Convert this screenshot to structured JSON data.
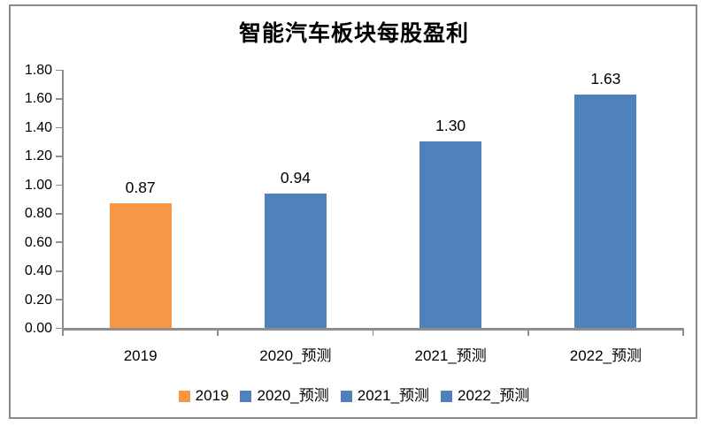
{
  "chart_data": {
    "type": "bar",
    "title": "智能汽车板块每股盈利",
    "categories": [
      "2019",
      "2020_预测",
      "2021_预测",
      "2022_预测"
    ],
    "values": [
      0.87,
      0.94,
      1.3,
      1.63
    ],
    "data_labels": [
      "0.87",
      "0.94",
      "1.30",
      "1.63"
    ],
    "bar_colors": [
      "#F79646",
      "#4F81BD",
      "#4F81BD",
      "#4F81BD"
    ],
    "legend": [
      {
        "label": "2019",
        "color": "#F79646"
      },
      {
        "label": "2020_预测",
        "color": "#4F81BD"
      },
      {
        "label": "2021_预测",
        "color": "#4F81BD"
      },
      {
        "label": "2022_预测",
        "color": "#4F81BD"
      }
    ],
    "legend_position": "bottom",
    "grid": false,
    "y_axis": {
      "min": 0.0,
      "max": 1.8,
      "step": 0.2,
      "tick_labels": [
        "0.00",
        "0.20",
        "0.40",
        "0.60",
        "0.80",
        "1.00",
        "1.20",
        "1.40",
        "1.60",
        "1.80"
      ]
    },
    "colors": {
      "axis": "#8e8e8e",
      "frame_border": "#8a8a8a",
      "text": "#000000",
      "background": "#ffffff"
    }
  }
}
